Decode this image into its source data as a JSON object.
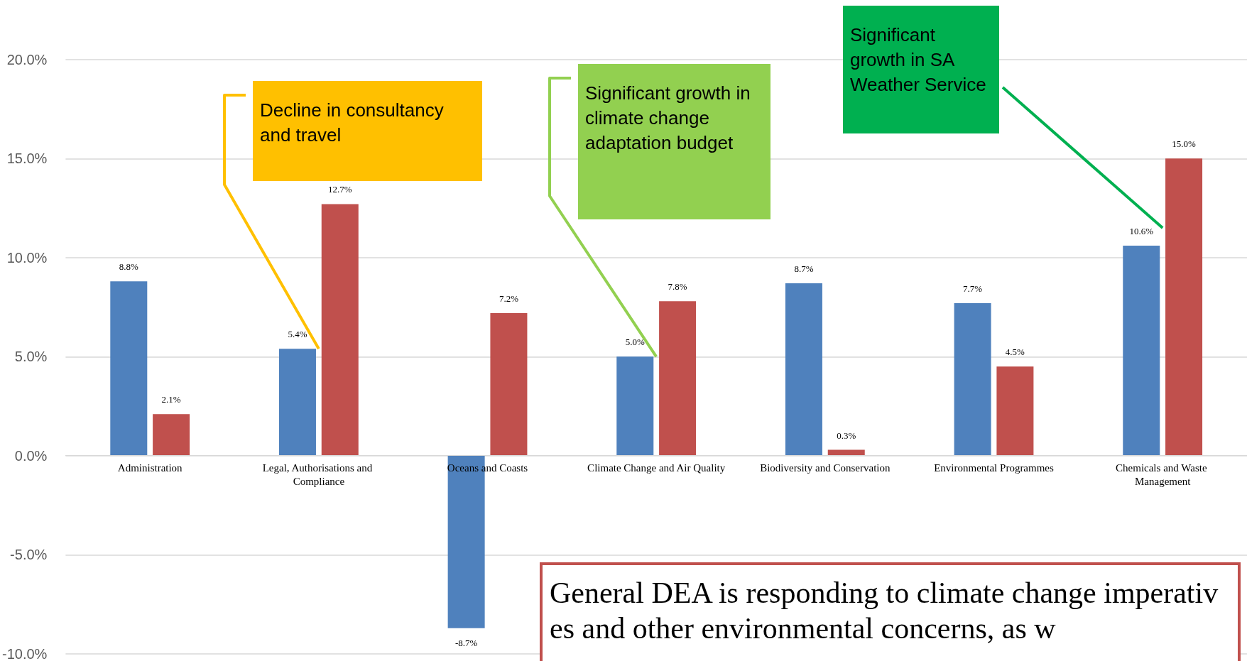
{
  "chart_data": {
    "type": "bar",
    "categories": [
      "Administration",
      "Legal, Authorisations and Compliance",
      "Oceans and Coasts",
      "Climate Change and Air Quality",
      "Biodiversity and Conservation",
      "Environmental Programmes",
      "Chemicals and Waste Management"
    ],
    "series": [
      {
        "color": "#4f81bd",
        "values": [
          8.8,
          5.4,
          -8.7,
          5.0,
          8.7,
          7.7,
          10.6
        ],
        "value_labels": [
          "8.8%",
          "5.4%",
          "-8.7%",
          "5.0%",
          "8.7%",
          "7.7%",
          "10.6%"
        ]
      },
      {
        "color": "#c0504d",
        "values": [
          2.1,
          12.7,
          7.2,
          7.8,
          0.3,
          4.5,
          15.0
        ],
        "value_labels": [
          "2.1%",
          "12.7%",
          "7.2%",
          "7.8%",
          "0.3%",
          "4.5%",
          "15.0%"
        ]
      }
    ],
    "ylim": [
      -10,
      23
    ],
    "yticks": [
      {
        "value": -10,
        "label": "-10.0%"
      },
      {
        "value": -5,
        "label": "-5.0%"
      },
      {
        "value": 0,
        "label": "0.0%"
      },
      {
        "value": 5,
        "label": "5.0%"
      },
      {
        "value": 10,
        "label": "10.0%"
      },
      {
        "value": 15,
        "label": "15.0%"
      },
      {
        "value": 20,
        "label": "20.0%"
      }
    ],
    "grid": "y",
    "annotations": [
      {
        "text": "Decline in consultancy and travel",
        "x": "Legal, Authorisations and Compliance",
        "y": 5.4
      },
      {
        "text": "Significant growth in climate change adaptation budget",
        "x": "Climate Change and Air Quality",
        "y": 5.0
      },
      {
        "text": "Significant growth in SA Weather Service",
        "x": "Chemicals and Waste Management",
        "y": 11.5
      },
      "General DEA is responding to climate change imperatives and other environmental concerns, as w"
    ]
  }
}
